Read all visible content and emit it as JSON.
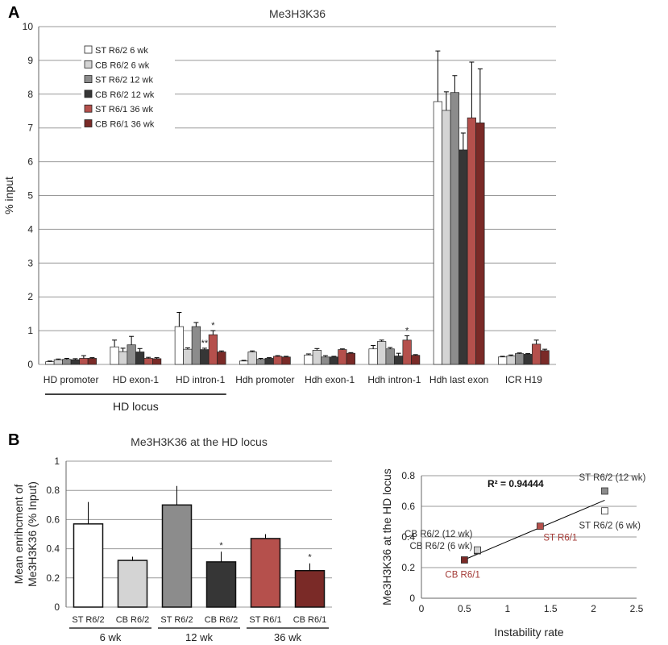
{
  "colors": {
    "st_r62_6": "#ffffff",
    "cb_r62_6": "#d4d4d4",
    "st_r62_12": "#8c8c8c",
    "cb_r62_12": "#363636",
    "st_r61_36": "#b5504c",
    "cb_r61_36": "#7a2a27",
    "grid": "#999999"
  },
  "panels": {
    "a": "A",
    "b": "B"
  },
  "chart_data": [
    {
      "type": "bar",
      "title": "Me3H3K36",
      "ylabel": "% input",
      "ylim": [
        0,
        10
      ],
      "yticks": [
        "0",
        "1",
        "2",
        "3",
        "4",
        "5",
        "6",
        "7",
        "8",
        "9",
        "10"
      ],
      "grid": true,
      "legend_position": "top-left",
      "categories": [
        "HD promoter",
        "HD exon-1",
        "HD intron-1",
        "Hdh promoter",
        "Hdh exon-1",
        "Hdh intron-1",
        "Hdh last exon",
        "ICR H19"
      ],
      "group_label": "HD locus",
      "series": [
        {
          "name": "ST R6/2 6 wk",
          "color_key": "st_r62_6",
          "values": [
            0.08,
            0.52,
            1.12,
            0.1,
            0.28,
            0.46,
            7.78,
            0.22
          ],
          "errors": [
            0.02,
            0.2,
            0.42,
            0.02,
            0.03,
            0.1,
            1.5,
            0.02
          ]
        },
        {
          "name": "CB R6/2 6 wk",
          "color_key": "cb_r62_6",
          "values": [
            0.14,
            0.38,
            0.45,
            0.37,
            0.42,
            0.68,
            7.52,
            0.25
          ],
          "errors": [
            0.02,
            0.1,
            0.04,
            0.03,
            0.05,
            0.04,
            0.55,
            0.03
          ]
        },
        {
          "name": "ST R6/2 12 wk",
          "color_key": "st_r62_12",
          "values": [
            0.15,
            0.58,
            1.12,
            0.15,
            0.22,
            0.46,
            8.05,
            0.32
          ],
          "errors": [
            0.03,
            0.25,
            0.12,
            0.03,
            0.04,
            0.04,
            0.5,
            0.02
          ]
        },
        {
          "name": "CB R6/2 12 wk",
          "color_key": "cb_r62_12",
          "values": [
            0.14,
            0.37,
            0.44,
            0.18,
            0.22,
            0.25,
            6.35,
            0.3
          ],
          "errors": [
            0.03,
            0.1,
            0.04,
            0.02,
            0.02,
            0.08,
            0.5,
            0.02
          ]
        },
        {
          "name": "ST R6/1 36 wk",
          "color_key": "st_r61_36",
          "values": [
            0.18,
            0.18,
            0.88,
            0.24,
            0.44,
            0.72,
            7.3,
            0.6
          ],
          "errors": [
            0.08,
            0.03,
            0.12,
            0.02,
            0.02,
            0.13,
            1.65,
            0.12
          ]
        },
        {
          "name": "CB R6/1 36 wk",
          "color_key": "cb_r61_36",
          "values": [
            0.18,
            0.17,
            0.37,
            0.22,
            0.33,
            0.27,
            7.15,
            0.41
          ],
          "errors": [
            0.02,
            0.03,
            0.03,
            0.02,
            0.02,
            0.02,
            1.6,
            0.04
          ]
        }
      ],
      "annotations": [
        {
          "category": "HD intron-1",
          "series": "CB R6/2 12 wk",
          "text": "**"
        },
        {
          "category": "HD intron-1",
          "series": "ST R6/1 36 wk",
          "text": "*"
        },
        {
          "category": "Hdh intron-1",
          "series": "ST R6/1 36 wk",
          "text": "*"
        }
      ]
    },
    {
      "type": "bar",
      "title": "Me3H3K36 at the HD locus",
      "ylabel_lines": [
        "Mean enrihcment of",
        "Me3H3K36 (% Input)"
      ],
      "ylim": [
        0,
        1
      ],
      "yticks": [
        "0",
        "0.2",
        "0.4",
        "0.6",
        "0.8",
        "1"
      ],
      "grid": true,
      "categories": [
        "ST R6/2",
        "CB R6/2",
        "ST R6/2",
        "CB R6/2",
        "ST R6/1",
        "CB R6/1"
      ],
      "groups": [
        "6 wk",
        "12 wk",
        "36 wk"
      ],
      "values": [
        0.57,
        0.32,
        0.7,
        0.31,
        0.47,
        0.25
      ],
      "errors": [
        0.15,
        0.025,
        0.13,
        0.07,
        0.03,
        0.05
      ],
      "color_keys": [
        "st_r62_6",
        "cb_r62_6",
        "st_r62_12",
        "cb_r62_12",
        "st_r61_36",
        "cb_r61_36"
      ],
      "significance": [
        "",
        "",
        "",
        "*",
        "",
        "*"
      ]
    },
    {
      "type": "scatter",
      "ylabel": "Me3H3K36  at the HD locus",
      "xlabel": "Instability rate",
      "xlim": [
        0,
        2.5
      ],
      "ylim": [
        0,
        0.8
      ],
      "xticks": [
        "0",
        "0.5",
        "1",
        "1.5",
        "2",
        "2.5"
      ],
      "yticks": [
        "0",
        "0.2",
        "0.4",
        "0.6",
        "0.8"
      ],
      "grid": true,
      "r_squared": "R² = 0.94444",
      "points": [
        {
          "x": 2.13,
          "y": 0.7,
          "label": "ST R6/2 (12 wk)",
          "color_key": "st_r62_12",
          "label_color": "#333333"
        },
        {
          "x": 2.13,
          "y": 0.57,
          "label": "ST R6/2 (6 wk)",
          "color_key": "st_r62_6",
          "label_color": "#333333"
        },
        {
          "x": 0.65,
          "y": 0.31,
          "label": "CB R6/2 (12 wk)",
          "color_key": "cb_r62_12",
          "label_color": "#333333"
        },
        {
          "x": 0.65,
          "y": 0.315,
          "label": "CB R6/2 (6 wk)",
          "color_key": "cb_r62_6",
          "label_color": "#333333"
        },
        {
          "x": 1.38,
          "y": 0.47,
          "label": "ST R6/1",
          "color_key": "st_r61_36",
          "label_color": "#a33a36"
        },
        {
          "x": 0.5,
          "y": 0.25,
          "label": "CB R6/1",
          "color_key": "cb_r61_36",
          "label_color": "#a33a36"
        }
      ],
      "trendline": {
        "x": [
          0.5,
          2.13
        ],
        "y": [
          0.252,
          0.64
        ]
      }
    }
  ]
}
